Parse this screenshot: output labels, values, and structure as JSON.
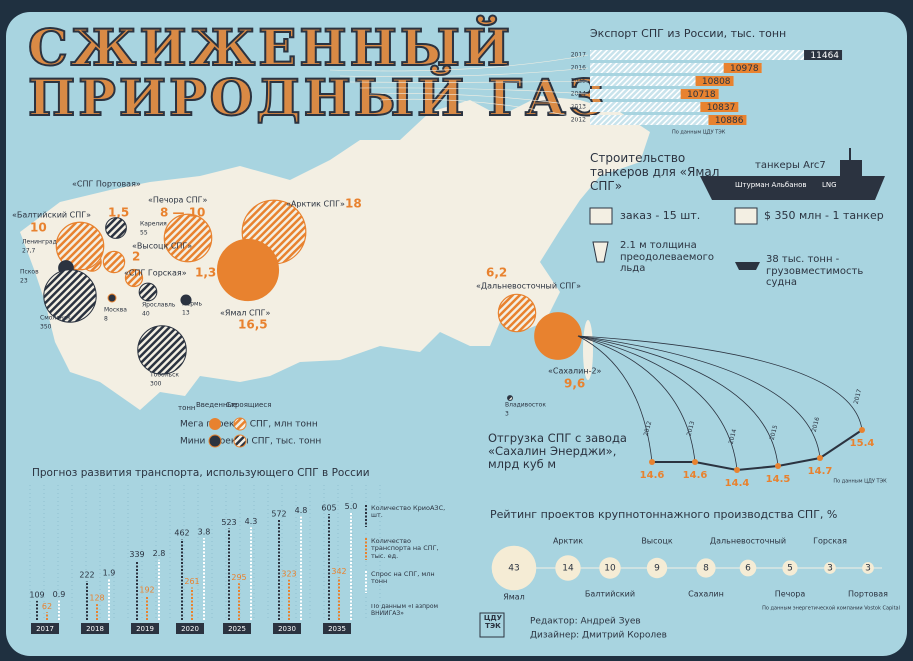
{
  "header": {
    "title_line1": "СЖИЖЕННЫЙ",
    "title_line2": "ПРИРОДНЫЙ ГАЗ"
  },
  "export": {
    "title": "Экспорт СПГ из России, тыс. тонн",
    "categories": [
      "2017",
      "2016",
      "2015",
      "2014",
      "2013",
      "2012"
    ],
    "values": [
      11464,
      10978,
      10808,
      10718,
      10837,
      10886
    ],
    "xlim": [
      9940,
      11500
    ],
    "color": "#e8822f",
    "source": "По данным ЦДУ ТЭК"
  },
  "map": {
    "mega": [
      {
        "name": "«СПГ Портовая»",
        "value": 1.5,
        "value_label": "1,5",
        "fill": "hatched"
      },
      {
        "name": "«Балтийский СПГ»",
        "value": 10,
        "fill": "hatched"
      },
      {
        "name": "«Печора СПГ»",
        "value_range": [
          8,
          10
        ],
        "value_label": "8 — 10",
        "fill": "hatched"
      },
      {
        "name": "«Арктик СПГ»",
        "value": 18,
        "fill": "hatched"
      },
      {
        "name": "«Высоцк СПГ»",
        "value": 2,
        "fill": "hatched"
      },
      {
        "name": "«СПГ Горская»",
        "value": 1.3,
        "value_label": "1,3",
        "fill": "hatched"
      },
      {
        "name": "«Ямал СПГ»",
        "value": 16.5,
        "value_label": "16,5",
        "fill": "solid"
      },
      {
        "name": "«Дальневосточный СПГ»",
        "value": 6.2,
        "value_label": "6,2",
        "fill": "hatched"
      },
      {
        "name": "«Сахалин-2»",
        "value": 9.6,
        "value_label": "9,6",
        "fill": "solid"
      }
    ],
    "mini": [
      {
        "name": "Ленинград",
        "value": 27.7,
        "value_label": "27,7",
        "fill": "solid"
      },
      {
        "name": "Псков",
        "value": 23,
        "fill": "solid"
      },
      {
        "name": "Карелия",
        "value": 55,
        "fill": "hatched"
      },
      {
        "name": "Смоленск",
        "value": 350,
        "fill": "hatched"
      },
      {
        "name": "Москва",
        "value": 8,
        "fill": "solid"
      },
      {
        "name": "Ярославль",
        "value": 40,
        "fill": "hatched"
      },
      {
        "name": "Пермь",
        "value": 13,
        "fill": "solid"
      },
      {
        "name": "Тобольск",
        "value": 300,
        "fill": "hatched"
      },
      {
        "name": "Владивосток",
        "value": 3,
        "fill": "hatched"
      }
    ],
    "legend": {
      "unit": "тонн",
      "mega": "Мега проекты СПГ, млн тонн",
      "mini": "Мини проекты СПГ, тыс. тонн",
      "built": "Введенные",
      "building": "Строящиеся"
    }
  },
  "tankers": {
    "title": "Строительство танкеров для «Ямал СПГ»",
    "ship_class": "танкеры Arc7",
    "ship_name": "Штурман Альбанов",
    "ship_mark": "LNG",
    "facts": [
      "заказ - 15 шт.",
      "$ 350 млн - 1 танкер",
      "2.1 м толщина преодолеваемого льда",
      "38 тыс. тонн - грузовместимость судна"
    ]
  },
  "sakhalin": {
    "title": "Отгрузка СПГ с завода «Сахалин Энерджи», млрд куб м",
    "categories": [
      "2012",
      "2013",
      "2014",
      "2015",
      "2016",
      "2017"
    ],
    "values": [
      14.6,
      14.6,
      14.4,
      14.5,
      14.7,
      15.4
    ],
    "ylim": [
      14,
      15.6
    ],
    "color": "#e8822f",
    "source": "По данным ЦДУ ТЭК"
  },
  "forecast": {
    "title": "Прогноз развития транспорта, использующего СПГ в России",
    "categories": [
      "2017",
      "2018",
      "2019",
      "2020",
      "2025",
      "2030",
      "2035"
    ],
    "series": [
      {
        "name": "Количество КриоАЗС, шт.",
        "color": "#2b3340",
        "values": [
          109,
          222,
          339,
          462,
          523,
          572,
          605
        ],
        "ylim": [
          0,
          640
        ]
      },
      {
        "name": "Количество транспорта на СПГ, тыс. ед.",
        "color": "#e8822f",
        "values": [
          62,
          128,
          192,
          261,
          295,
          323,
          342
        ],
        "ylim": [
          0,
          900
        ]
      },
      {
        "name": "Спрос на СПГ, млн тонн",
        "color": "#ffffff",
        "values": [
          0.9,
          1.9,
          2.8,
          3.8,
          4.3,
          4.8,
          5
        ],
        "value_labels": [
          "0.9",
          "1.9",
          "2.8",
          "3.8",
          "4.3",
          "4.8",
          "5.0"
        ],
        "ylim": [
          0,
          5.2
        ]
      }
    ],
    "source": "По данным «Газпром ВНИИГАЗ»"
  },
  "rating": {
    "title": "Рейтинг проектов крупнотоннажного производства СПГ, %",
    "categories": [
      "Ямал",
      "Арктик",
      "Балтийский",
      "Высоцк",
      "Сахалин",
      "Дальневосточный",
      "Печора",
      "Горская",
      "Портовая"
    ],
    "values": [
      43,
      14,
      10,
      9,
      8,
      6,
      5,
      3,
      3
    ],
    "source": "По данным энергетической компании Vostok Capital"
  },
  "footer": {
    "logo": "ЦДУ ТЭК",
    "editor": "Редактор: Андрей Зуев",
    "designer": "Дизайнер: Дмитрий Королев"
  }
}
